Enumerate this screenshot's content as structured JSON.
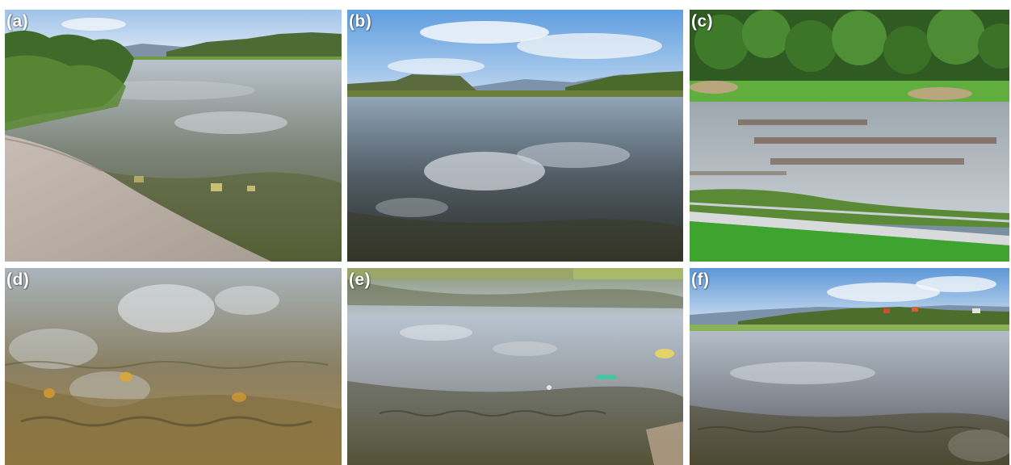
{
  "figure": {
    "panels": [
      {
        "id": "a",
        "label": "(a)"
      },
      {
        "id": "b",
        "label": "(b)"
      },
      {
        "id": "c",
        "label": "(c)"
      },
      {
        "id": "d",
        "label": "(d)"
      },
      {
        "id": "e",
        "label": "(e)"
      },
      {
        "id": "f",
        "label": "(f)"
      }
    ]
  }
}
